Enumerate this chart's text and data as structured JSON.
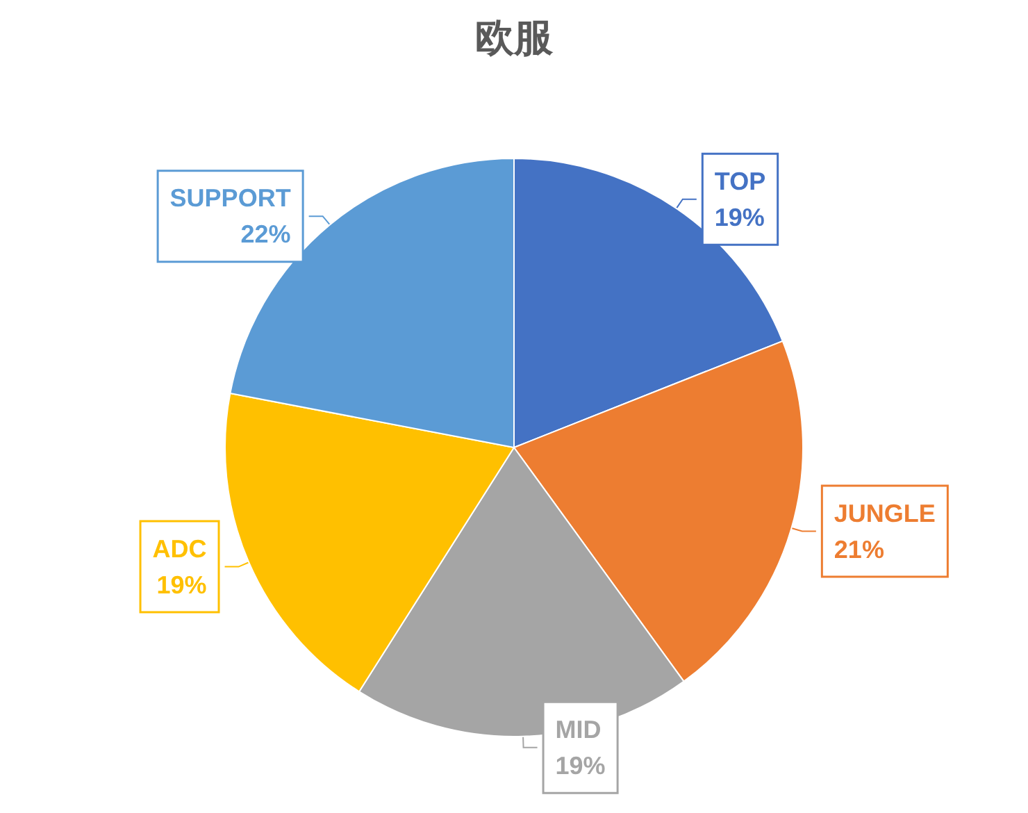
{
  "chart_data": {
    "type": "pie",
    "title": "欧服",
    "categories": [
      "TOP",
      "JUNGLE",
      "MID",
      "ADC",
      "SUPPORT"
    ],
    "values": [
      19,
      21,
      19,
      19,
      22
    ],
    "value_labels": [
      "19%",
      "21%",
      "19%",
      "19%",
      "22%"
    ],
    "colors": [
      "#4472c4",
      "#ed7d31",
      "#a5a5a5",
      "#ffc000",
      "#5b9bd5"
    ],
    "legend": false
  }
}
